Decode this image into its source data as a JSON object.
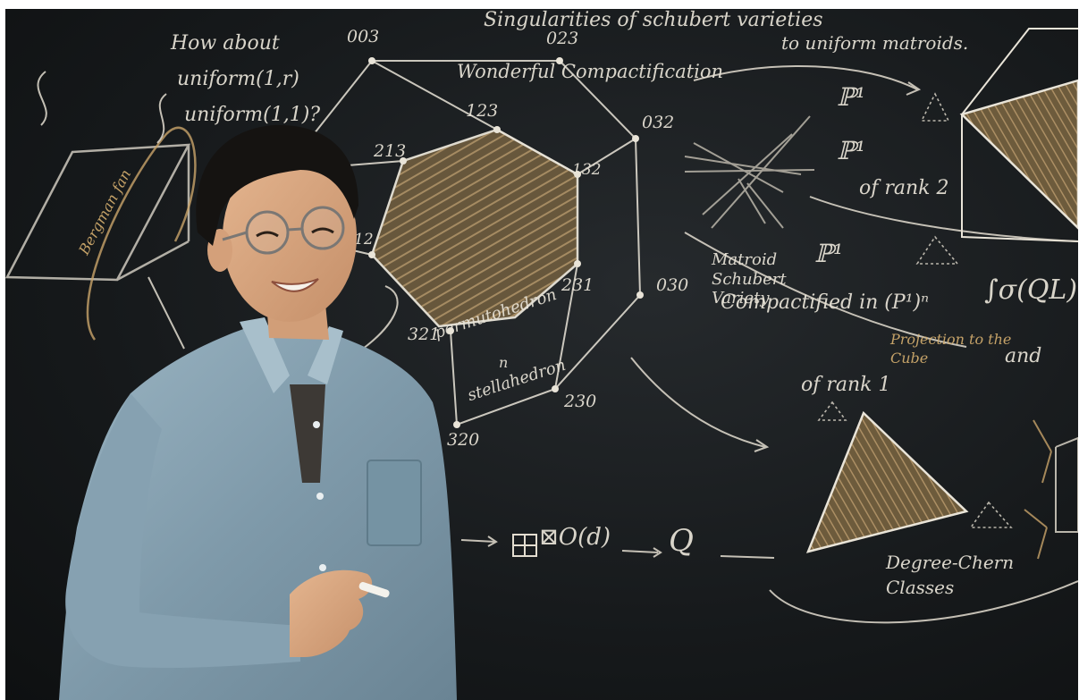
{
  "scene": {
    "type": "photo",
    "subject": "person-smiling-at-chalkboard"
  },
  "chalkboard": {
    "text": {
      "how_about": "How about",
      "uniform_1r": "uniform(1,r)",
      "uniform_11": "uniform(1,1)?",
      "singularities": "Singularities of schubert varieties",
      "to_uniform": "to uniform matroids.",
      "wonderful": "Wonderful Compactification",
      "matroid_schubert": "Matroid Schubert Variety",
      "compactified": "Compactified in (P¹)ⁿ",
      "of_rank_2": "of rank 2",
      "of_rank_1": "of rank 1",
      "projection": "Projection to the Cube",
      "and": "and",
      "permutohedron": "permutohedron",
      "n": "n",
      "stellahedron": "stellahedron",
      "bergman": "Bergman fan",
      "fano_sum": "⊠O(d)",
      "q_l": "Q",
      "degree_classes": "Degree-Chern Classes",
      "p1": "ℙ¹",
      "integral": "∫σ(QL)",
      "labels": {
        "n003": "003",
        "n023": "023",
        "n123": "123",
        "n032": "032",
        "n213": "213",
        "n132": "132",
        "n030": "030",
        "n231": "231",
        "n321": "321",
        "n230": "230",
        "n320": "320",
        "n12": "12"
      }
    },
    "colors": {
      "board": "#16191b",
      "chalk": "#e9e4d8",
      "gold_chalk": "#d3ad6e",
      "shirt": "#8aa5b4"
    }
  }
}
